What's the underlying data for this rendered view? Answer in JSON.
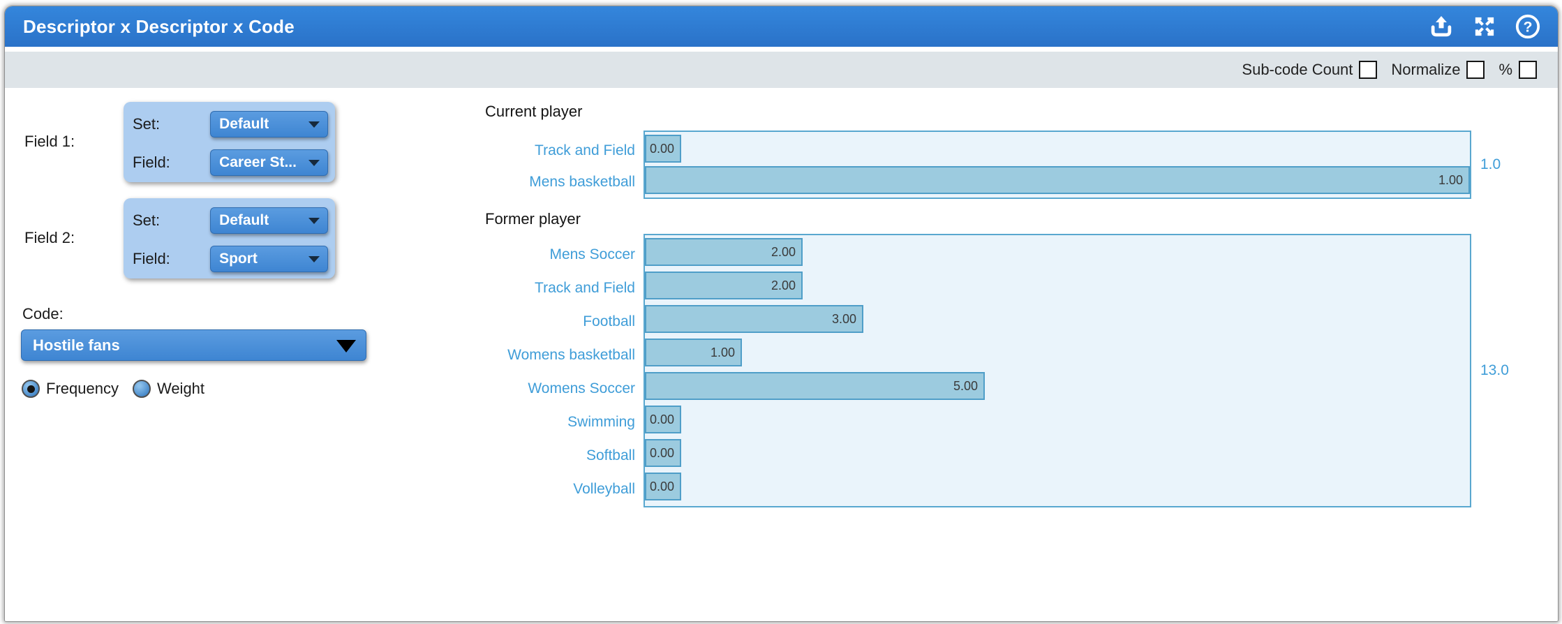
{
  "window": {
    "title": "Descriptor x Descriptor x Code",
    "icons": [
      "export-icon",
      "expand-icon",
      "help-icon"
    ]
  },
  "toolbar": {
    "checkboxes": [
      {
        "label": "Sub-code Count",
        "checked": false
      },
      {
        "label": "Normalize",
        "checked": false
      },
      {
        "label": "%",
        "checked": false
      }
    ]
  },
  "controls": {
    "field1": {
      "label": "Field 1:",
      "rows": [
        {
          "label": "Set:",
          "value": "Default"
        },
        {
          "label": "Field:",
          "value": "Career St..."
        }
      ]
    },
    "field2": {
      "label": "Field 2:",
      "rows": [
        {
          "label": "Set:",
          "value": "Default"
        },
        {
          "label": "Field:",
          "value": "Sport"
        }
      ]
    },
    "code": {
      "label": "Code:",
      "value": "Hostile fans"
    },
    "measure": {
      "options": [
        {
          "label": "Frequency",
          "selected": true
        },
        {
          "label": "Weight",
          "selected": false
        }
      ]
    }
  },
  "chart_data": {
    "type": "bar",
    "orientation": "horizontal",
    "groups": [
      {
        "label": "Current player",
        "total": 1.0,
        "total_label": "1.0",
        "bars": [
          {
            "label": "Track and Field",
            "value": 0.0,
            "value_label": "0.00"
          },
          {
            "label": "Mens basketball",
            "value": 1.0,
            "value_label": "1.00"
          }
        ]
      },
      {
        "label": "Former player",
        "total": 13.0,
        "total_label": "13.0",
        "bars": [
          {
            "label": "Mens Soccer",
            "value": 2.0,
            "value_label": "2.00"
          },
          {
            "label": "Track and Field",
            "value": 2.0,
            "value_label": "2.00"
          },
          {
            "label": "Football",
            "value": 3.0,
            "value_label": "3.00"
          },
          {
            "label": "Womens basketball",
            "value": 1.0,
            "value_label": "1.00"
          },
          {
            "label": "Womens Soccer",
            "value": 5.0,
            "value_label": "5.00"
          },
          {
            "label": "Swimming",
            "value": 0.0,
            "value_label": "0.00"
          },
          {
            "label": "Softball",
            "value": 0.0,
            "value_label": "0.00"
          },
          {
            "label": "Volleyball",
            "value": 0.0,
            "value_label": "0.00"
          }
        ]
      }
    ],
    "colors": {
      "accent_blue": "#2b77cd",
      "bar_fill": "#9ccbdf",
      "bar_border": "#4f9ec8",
      "plot_bg": "#eaf4fb",
      "plot_border": "#59a7cf",
      "category_label": "#3f9dd8"
    }
  }
}
